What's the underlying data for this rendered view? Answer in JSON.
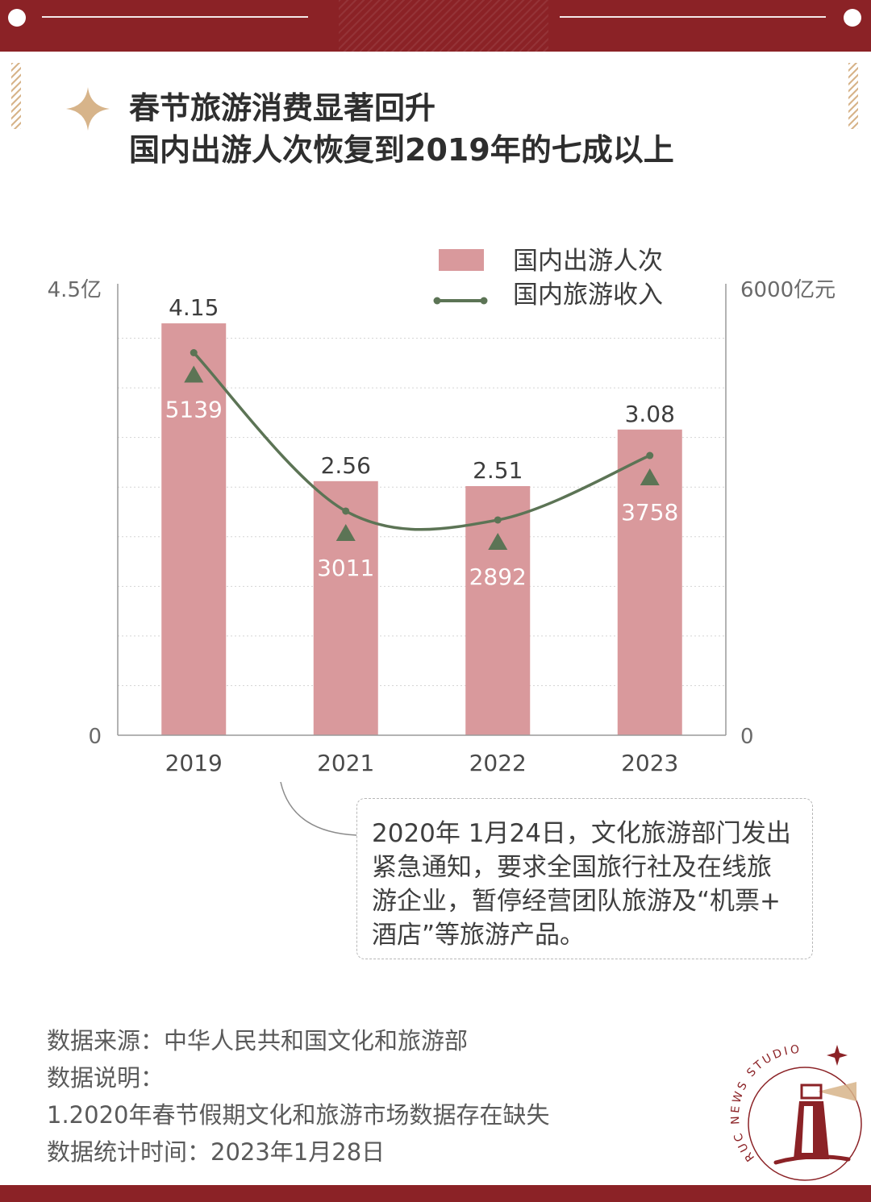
{
  "header": {
    "title_line1": "春节旅游消费显著回升",
    "title_line2": "国内出游人次恢复到2019年的七成以上"
  },
  "chart_data": {
    "type": "bar",
    "categories": [
      "2019",
      "2021",
      "2022",
      "2023"
    ],
    "series": [
      {
        "name": "国内出游人次",
        "kind": "bar",
        "axis": "left",
        "values": [
          4.15,
          2.56,
          2.51,
          3.08
        ],
        "labels": [
          "4.15",
          "2.56",
          "2.51",
          "3.08"
        ],
        "color": "#d9999c"
      },
      {
        "name": "国内旅游收入",
        "kind": "line",
        "axis": "right",
        "values": [
          5139,
          3011,
          2892,
          3758
        ],
        "labels": [
          "5139",
          "3011",
          "2892",
          "3758"
        ],
        "color": "#5c7455"
      }
    ],
    "y_left": {
      "min": 0,
      "max": 4.5,
      "min_label": "0",
      "max_label": "4.5亿"
    },
    "y_right": {
      "min": 0,
      "max": 6000,
      "min_label": "0",
      "max_label": "6000亿元"
    },
    "grid": true,
    "legend_position": "top-right"
  },
  "annotation": {
    "lines": [
      "2020年 1月24日，文化旅游部门发出",
      "紧急通知，要求全国旅行社及在线旅",
      "游企业，暂停经营团队旅游及“机票+",
      "酒店”等旅游产品。"
    ]
  },
  "footer": {
    "source": "数据来源：中华人民共和国文化和旅游部",
    "notes_heading": "数据说明：",
    "note_1": "1.2020年春节假期文化和旅游市场数据存在缺失",
    "stats_time": "数据统计时间：2023年1月28日"
  },
  "logo": {
    "text": "RUC NEWS STUDIO"
  },
  "colors": {
    "brand_red": "#8b2226",
    "accent_gold": "#d7b48a",
    "bar": "#d9999c",
    "line": "#5c7455"
  }
}
